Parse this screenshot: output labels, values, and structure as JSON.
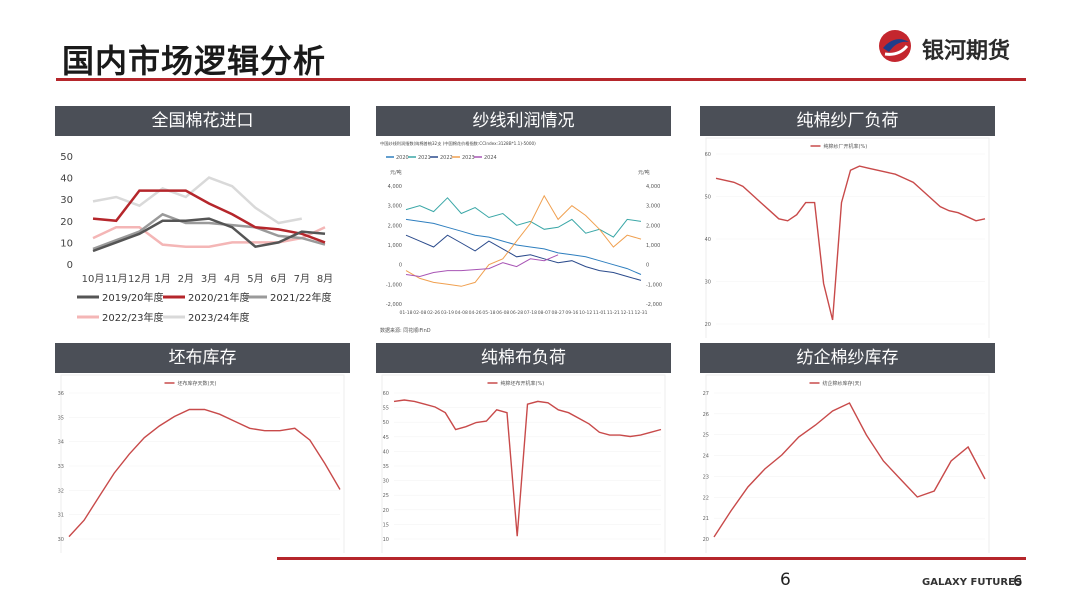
{
  "page": {
    "title": "国内市场逻辑分析",
    "brand_name": "银河期货",
    "brand_en": "GALAXY FUTURES",
    "page_number_center": "6",
    "page_number_right": "6",
    "accent_color": "#b5262b"
  },
  "panels": {
    "p1": {
      "header": "全国棉花进口"
    },
    "p2": {
      "header": "纱线利润情况"
    },
    "p3": {
      "header": "纯棉纱厂负荷"
    },
    "p4": {
      "header": "坯布库存"
    },
    "p5": {
      "header": "纯棉布负荷"
    },
    "p6": {
      "header": "纺企棉纱库存"
    }
  },
  "chart_data": [
    {
      "id": "cotton-import",
      "type": "line",
      "categories": [
        "10月",
        "11月",
        "12月",
        "1月",
        "2月",
        "3月",
        "4月",
        "5月",
        "6月",
        "7月",
        "8月"
      ],
      "ylim": [
        0,
        50
      ],
      "yticks": [
        0,
        10,
        20,
        30,
        40,
        50
      ],
      "legend_position": "bottom",
      "series": [
        {
          "name": "2019/20年度",
          "color": "#555555",
          "values": [
            6,
            10,
            14,
            20,
            20,
            21,
            17,
            8,
            10,
            15,
            14
          ]
        },
        {
          "name": "2020/21年度",
          "color": "#b5262b",
          "values": [
            21,
            20,
            34,
            34,
            34,
            28,
            23,
            17,
            16,
            14,
            10
          ]
        },
        {
          "name": "2021/22年度",
          "color": "#9a9a9a",
          "values": [
            7,
            11,
            15,
            23,
            19,
            19,
            18,
            17,
            13,
            12,
            9
          ]
        },
        {
          "name": "2022/23年度",
          "color": "#f4b6b6",
          "values": [
            12,
            17,
            17,
            9,
            8,
            8,
            10,
            10,
            10,
            12,
            17
          ]
        },
        {
          "name": "2023/24年度",
          "color": "#d9d9d9",
          "values": [
            29,
            31,
            27,
            35,
            31,
            40,
            36,
            26,
            19,
            21,
            null
          ]
        }
      ]
    },
    {
      "id": "yarn-profit",
      "type": "line",
      "yticks_left": [
        "4,000",
        "3,000",
        "2,000",
        "1,000",
        "0",
        "-1,000",
        "-2,000"
      ],
      "yticks_right": [
        "4,000",
        "3,000",
        "2,000",
        "1,000",
        "0",
        "-1,000",
        "-2,000"
      ],
      "ylim": [
        -2000,
        4000
      ],
      "unit_left": "元/吨",
      "unit_right": "元/吨",
      "subtitle": "中国纱线利润指数(纯棉普梳32支 (中国棉花价格指数:CCIndex:3128B*1.1)-5000)",
      "source": "数据来源: 同花顺iFinD",
      "x_labels": [
        "01-18",
        "02-08",
        "02-26",
        "03-19",
        "04-08",
        "04-26",
        "05-18",
        "06-08",
        "06-28",
        "07-18",
        "08-07",
        "08-27",
        "09-16",
        "10-12",
        "11-01",
        "11-21",
        "12-11",
        "12-31"
      ],
      "series": [
        {
          "name": "2020",
          "color": "#2f7fbf",
          "values": [
            2300,
            2200,
            2100,
            1900,
            1700,
            1500,
            1400,
            1200,
            1000,
            900,
            800,
            600,
            500,
            400,
            200,
            0,
            -200,
            -500
          ]
        },
        {
          "name": "2021",
          "color": "#3aa7a7",
          "values": [
            2800,
            3000,
            2700,
            3400,
            2600,
            2900,
            2400,
            2600,
            2000,
            2200,
            1800,
            1900,
            2300,
            1600,
            1800,
            1400,
            2300,
            2200
          ]
        },
        {
          "name": "2022",
          "color": "#2b4b8c",
          "values": [
            1500,
            1200,
            900,
            1500,
            1100,
            700,
            1200,
            800,
            400,
            500,
            300,
            100,
            200,
            -100,
            -300,
            -400,
            -600,
            -800
          ]
        },
        {
          "name": "2023",
          "color": "#f0a050",
          "values": [
            -300,
            -700,
            -900,
            -1000,
            -1100,
            -900,
            0,
            300,
            1200,
            2100,
            3500,
            2300,
            3000,
            2500,
            1800,
            900,
            1500,
            1300
          ]
        },
        {
          "name": "2024",
          "color": "#a855b5",
          "values": [
            -500,
            -600,
            -400,
            -300,
            -300,
            -250,
            -200,
            100,
            -100,
            300,
            200,
            500,
            null,
            null,
            null,
            null,
            null,
            null
          ]
        }
      ]
    },
    {
      "id": "yarn-mill-load",
      "type": "line",
      "legend": "纯棉纱厂开机率(%)",
      "yticks": [
        "60",
        "50",
        "40",
        "30",
        "20"
      ],
      "ylim": [
        20,
        62
      ],
      "series": [
        {
          "name": "纯棉纱厂开机率(%)",
          "color": "#c84a4a",
          "values": [
            56,
            55.5,
            55,
            54,
            52,
            50,
            48,
            46,
            45.5,
            47,
            50,
            50,
            30,
            21,
            50,
            58,
            59,
            58.5,
            58,
            57.5,
            57,
            56,
            55,
            53,
            51,
            49,
            48,
            47.5,
            46.5,
            45.5,
            46
          ]
        }
      ]
    },
    {
      "id": "grey-cloth-inventory",
      "type": "line",
      "legend": "坯布库存天数(天)",
      "yticks": [
        "36",
        "35",
        "34",
        "33",
        "32",
        "31",
        "30"
      ],
      "ylim": [
        30,
        36.2
      ],
      "series": [
        {
          "name": "坯布库存天数(天)",
          "color": "#c84a4a",
          "values": [
            30.1,
            30.8,
            31.8,
            32.8,
            33.6,
            34.3,
            34.8,
            35.2,
            35.5,
            35.5,
            35.3,
            35.0,
            34.7,
            34.6,
            34.6,
            34.7,
            34.2,
            33.2,
            32.1
          ]
        }
      ]
    },
    {
      "id": "cotton-cloth-load",
      "type": "line",
      "legend": "纯棉坯布开机率(%)",
      "yticks": [
        "60",
        "55",
        "50",
        "45",
        "40",
        "35",
        "30",
        "25",
        "20",
        "15",
        "10"
      ],
      "ylim": [
        10,
        62
      ],
      "series": [
        {
          "name": "纯棉坯布开机率(%)",
          "color": "#c84a4a",
          "values": [
            59,
            59.5,
            59,
            58,
            57,
            55,
            49,
            50,
            51.5,
            52,
            56,
            55,
            11,
            58,
            59,
            58.5,
            56,
            55,
            53,
            51,
            48,
            47,
            47,
            46.5,
            47,
            48,
            49
          ]
        }
      ]
    },
    {
      "id": "spinning-yarn-inventory",
      "type": "line",
      "legend": "纺企棉纱库存(天)",
      "yticks": [
        "27",
        "26",
        "25",
        "24",
        "23",
        "22",
        "21",
        "20"
      ],
      "ylim": [
        20,
        27.3
      ],
      "series": [
        {
          "name": "纺企棉纱库存(天)",
          "color": "#c84a4a",
          "values": [
            20.1,
            21.4,
            22.6,
            23.5,
            24.2,
            25.1,
            25.7,
            26.4,
            26.8,
            25.2,
            23.9,
            23.0,
            22.1,
            22.4,
            23.9,
            24.6,
            23.0
          ]
        }
      ]
    }
  ]
}
